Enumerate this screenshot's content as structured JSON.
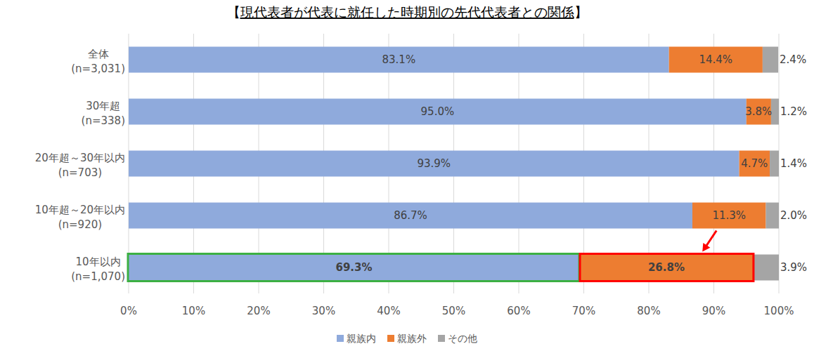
{
  "chart_data": {
    "type": "bar",
    "orientation": "horizontal",
    "stacked": true,
    "title": "【現代表者が代表に就任した時期別の先代代表者との関係】",
    "categories": [
      "全体\n(n=3,031)",
      "30年超\n(n=338)",
      "20年超～30年以内\n(n=703)",
      "10年超～20年以内\n(n=920)",
      "10年以内\n(n=1,070)"
    ],
    "series": [
      {
        "name": "親族内",
        "color": "#8FAADC",
        "values": [
          83.1,
          95.0,
          93.9,
          86.7,
          69.3
        ],
        "value_labels": [
          "83.1%",
          "95.0%",
          "93.9%",
          "86.7%",
          "69.3%"
        ]
      },
      {
        "name": "親族外",
        "color": "#ED7D31",
        "values": [
          14.4,
          3.8,
          4.7,
          11.3,
          26.8
        ],
        "value_labels": [
          "14.4%",
          "3.8%",
          "4.7%",
          "11.3%",
          "26.8%"
        ]
      },
      {
        "name": "その他",
        "color": "#A5A5A5",
        "values": [
          2.4,
          1.2,
          1.4,
          2.0,
          3.9
        ],
        "value_labels": [
          "2.4%",
          "1.2%",
          "1.4%",
          "2.0%",
          "3.9%"
        ]
      }
    ],
    "xlim": [
      0,
      100
    ],
    "xticks": [
      {
        "value": 0,
        "label": "0%"
      },
      {
        "value": 10,
        "label": "10%"
      },
      {
        "value": 20,
        "label": "20%"
      },
      {
        "value": 30,
        "label": "30%"
      },
      {
        "value": 40,
        "label": "40%"
      },
      {
        "value": 50,
        "label": "50%"
      },
      {
        "value": 60,
        "label": "60%"
      },
      {
        "value": 70,
        "label": "70%"
      },
      {
        "value": 80,
        "label": "80%"
      },
      {
        "value": 90,
        "label": "90%"
      },
      {
        "value": 100,
        "label": "100%"
      }
    ],
    "grid": true,
    "legend": "bottom",
    "data_labels": true
  }
}
